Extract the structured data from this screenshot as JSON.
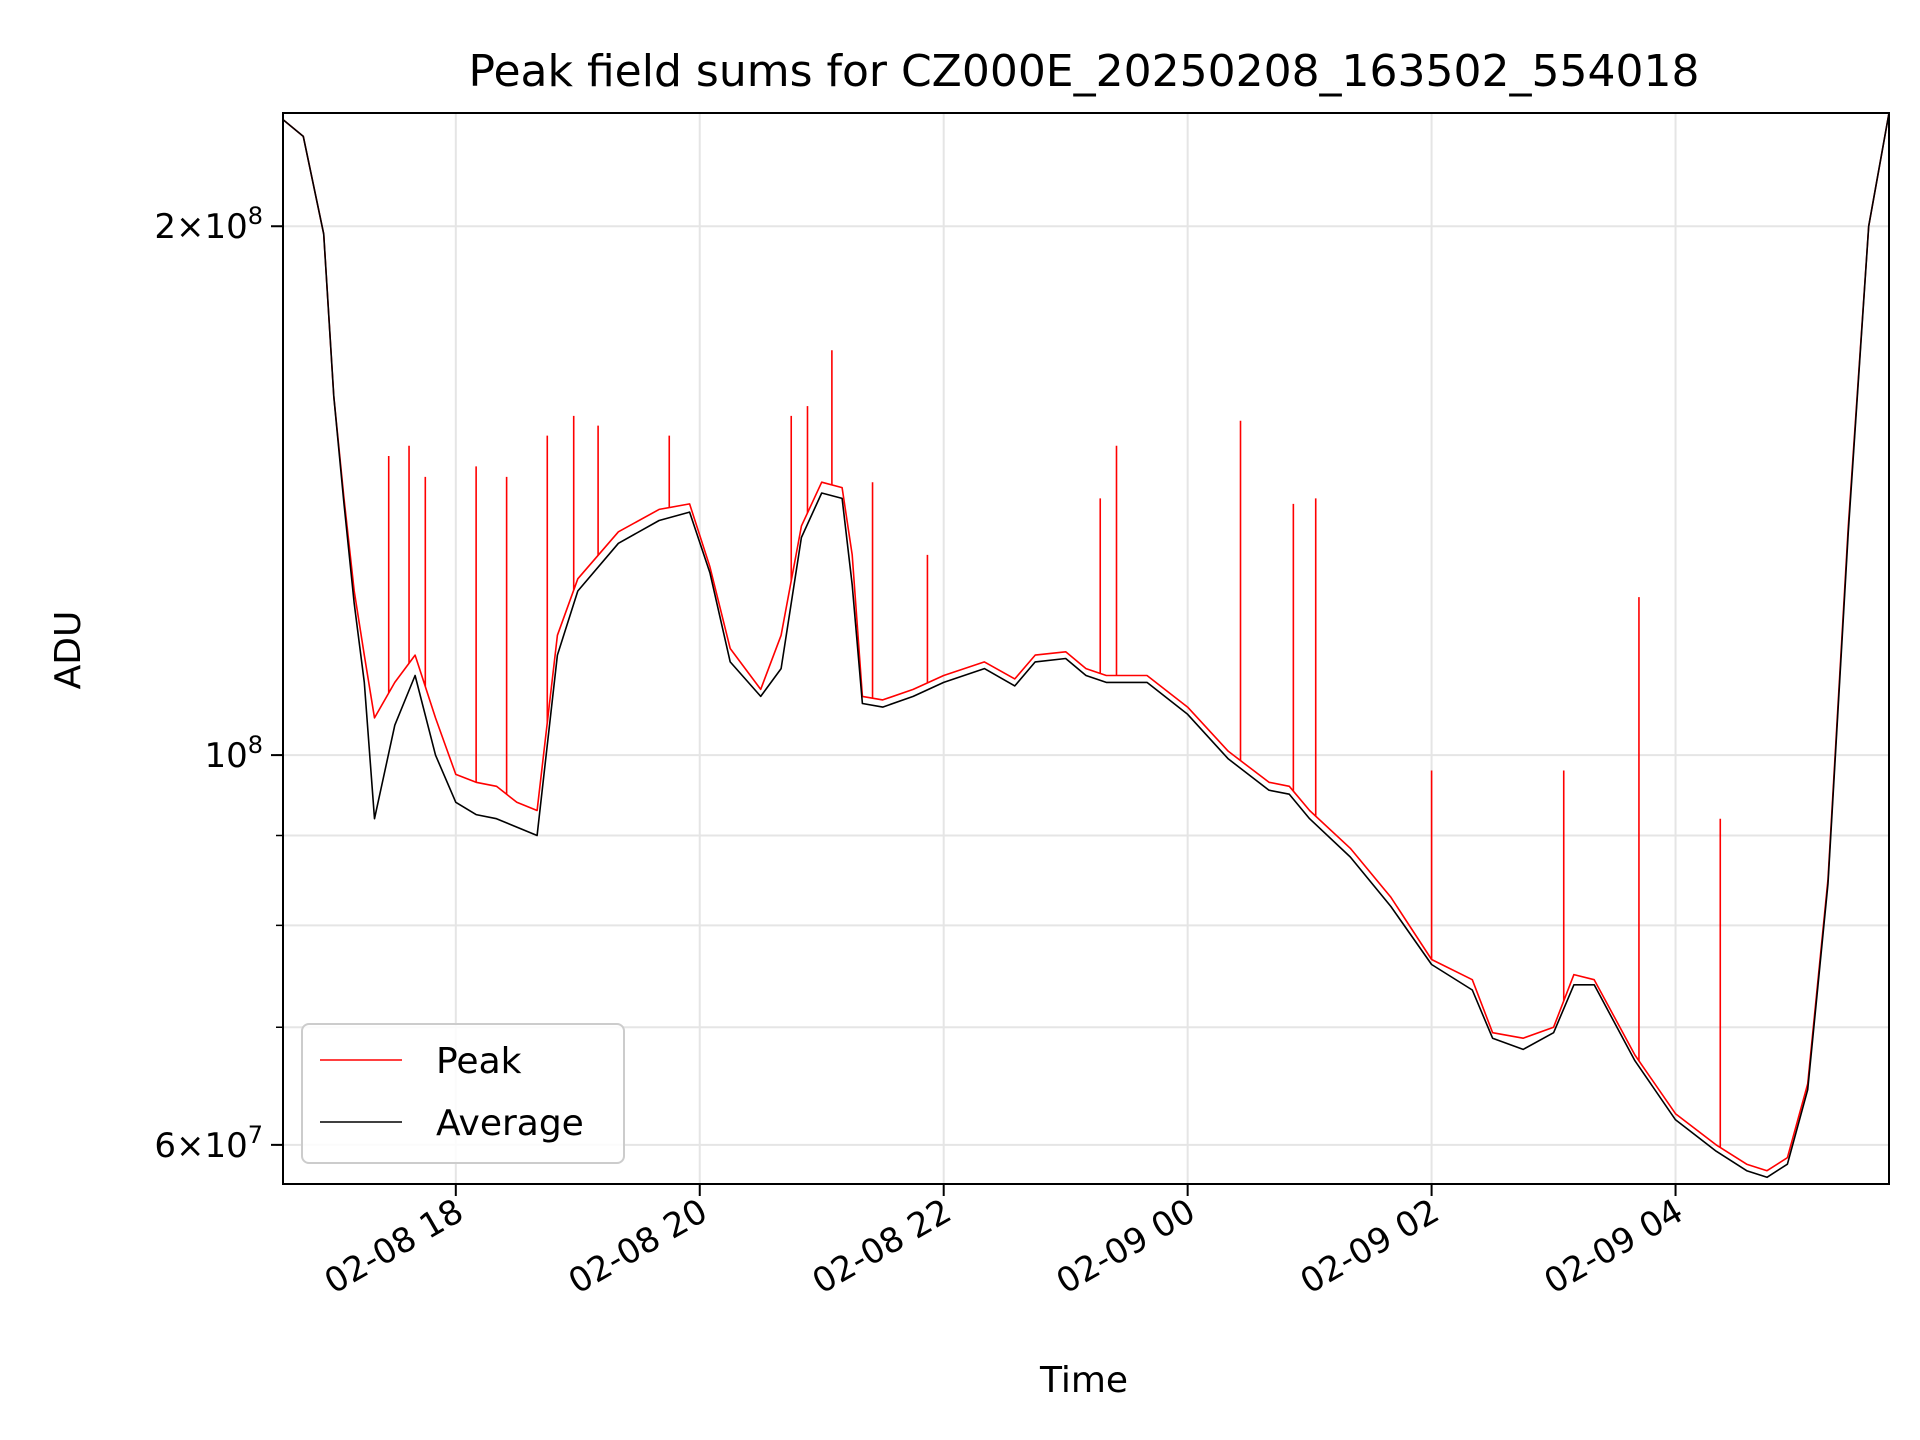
{
  "chart_data": {
    "type": "line",
    "title": "Peak field sums for CZ000E_20250208_163502_554018",
    "xlabel": "Time",
    "ylabel": "ADU",
    "y_scale": "log",
    "ylim": [
      57000000,
      232000000
    ],
    "xlim": [
      "2025-02-08 16:35",
      "2025-02-09 05:45"
    ],
    "grid": true,
    "legend_position": "lower-left",
    "x_ticks": [
      "02-08 18",
      "02-08 20",
      "02-08 22",
      "02-09 00",
      "02-09 02",
      "02-09 04"
    ],
    "x_tick_times": [
      "2025-02-08 18:00",
      "2025-02-08 20:00",
      "2025-02-08 22:00",
      "2025-02-09 00:00",
      "2025-02-09 02:00",
      "2025-02-09 04:00"
    ],
    "y_ticks_major": [
      "2×10^8",
      "10^8",
      "6×10^7"
    ],
    "y_tick_values": [
      200000000,
      100000000,
      60000000
    ],
    "series": [
      {
        "name": "Peak",
        "color": "#ff0000",
        "x": [
          "2025-02-08 16:35",
          "2025-02-08 16:45",
          "2025-02-08 16:55",
          "2025-02-08 17:00",
          "2025-02-08 17:05",
          "2025-02-08 17:10",
          "2025-02-08 17:15",
          "2025-02-08 17:20",
          "2025-02-08 17:30",
          "2025-02-08 17:40",
          "2025-02-08 17:50",
          "2025-02-08 18:00",
          "2025-02-08 18:10",
          "2025-02-08 18:20",
          "2025-02-08 18:30",
          "2025-02-08 18:40",
          "2025-02-08 18:50",
          "2025-02-08 19:00",
          "2025-02-08 19:20",
          "2025-02-08 19:40",
          "2025-02-08 19:55",
          "2025-02-08 20:05",
          "2025-02-08 20:15",
          "2025-02-08 20:30",
          "2025-02-08 20:40",
          "2025-02-08 20:50",
          "2025-02-08 21:00",
          "2025-02-08 21:10",
          "2025-02-08 21:15",
          "2025-02-08 21:20",
          "2025-02-08 21:30",
          "2025-02-08 21:45",
          "2025-02-08 22:00",
          "2025-02-08 22:20",
          "2025-02-08 22:35",
          "2025-02-08 22:45",
          "2025-02-08 23:00",
          "2025-02-08 23:10",
          "2025-02-08 23:20",
          "2025-02-08 23:40",
          "2025-02-09 00:00",
          "2025-02-09 00:20",
          "2025-02-09 00:40",
          "2025-02-09 00:50",
          "2025-02-09 01:00",
          "2025-02-09 01:20",
          "2025-02-09 01:40",
          "2025-02-09 02:00",
          "2025-02-09 02:20",
          "2025-02-09 02:30",
          "2025-02-09 02:45",
          "2025-02-09 03:00",
          "2025-02-09 03:10",
          "2025-02-09 03:20",
          "2025-02-09 03:40",
          "2025-02-09 04:00",
          "2025-02-09 04:20",
          "2025-02-09 04:35",
          "2025-02-09 04:45",
          "2025-02-09 04:55",
          "2025-02-09 05:05",
          "2025-02-09 05:15",
          "2025-02-09 05:25",
          "2025-02-09 05:35",
          "2025-02-09 05:45"
        ],
        "values": [
          230000000,
          225000000,
          198000000,
          160000000,
          140000000,
          124000000,
          114000000,
          105000000,
          110000000,
          114000000,
          105000000,
          97500000,
          96500000,
          96000000,
          94000000,
          93000000,
          117000000,
          126000000,
          134000000,
          138000000,
          139000000,
          128000000,
          115000000,
          109000000,
          117000000,
          135000000,
          143000000,
          142000000,
          130000000,
          108000000,
          107500000,
          109000000,
          111000000,
          113000000,
          110500000,
          114000000,
          114500000,
          112000000,
          111000000,
          111000000,
          106500000,
          100500000,
          96500000,
          96000000,
          93000000,
          88500000,
          83000000,
          76500000,
          74500000,
          69500000,
          69000000,
          70000000,
          75000000,
          74500000,
          67500000,
          62500000,
          60000000,
          58500000,
          58000000,
          59000000,
          65000000,
          85000000,
          135000000,
          200000000,
          232000000
        ]
      },
      {
        "name": "Average",
        "color": "#000000",
        "x": [
          "2025-02-08 16:35",
          "2025-02-08 16:45",
          "2025-02-08 16:55",
          "2025-02-08 17:00",
          "2025-02-08 17:05",
          "2025-02-08 17:10",
          "2025-02-08 17:15",
          "2025-02-08 17:20",
          "2025-02-08 17:30",
          "2025-02-08 17:40",
          "2025-02-08 17:50",
          "2025-02-08 18:00",
          "2025-02-08 18:10",
          "2025-02-08 18:20",
          "2025-02-08 18:30",
          "2025-02-08 18:40",
          "2025-02-08 18:50",
          "2025-02-08 19:00",
          "2025-02-08 19:20",
          "2025-02-08 19:40",
          "2025-02-08 19:55",
          "2025-02-08 20:05",
          "2025-02-08 20:15",
          "2025-02-08 20:30",
          "2025-02-08 20:40",
          "2025-02-08 20:50",
          "2025-02-08 21:00",
          "2025-02-08 21:10",
          "2025-02-08 21:15",
          "2025-02-08 21:20",
          "2025-02-08 21:30",
          "2025-02-08 21:45",
          "2025-02-08 22:00",
          "2025-02-08 22:20",
          "2025-02-08 22:35",
          "2025-02-08 22:45",
          "2025-02-08 23:00",
          "2025-02-08 23:10",
          "2025-02-08 23:20",
          "2025-02-08 23:40",
          "2025-02-09 00:00",
          "2025-02-09 00:20",
          "2025-02-09 00:40",
          "2025-02-09 00:50",
          "2025-02-09 01:00",
          "2025-02-09 01:20",
          "2025-02-09 01:40",
          "2025-02-09 02:00",
          "2025-02-09 02:20",
          "2025-02-09 02:30",
          "2025-02-09 02:45",
          "2025-02-09 03:00",
          "2025-02-09 03:10",
          "2025-02-09 03:20",
          "2025-02-09 03:40",
          "2025-02-09 04:00",
          "2025-02-09 04:20",
          "2025-02-09 04:35",
          "2025-02-09 04:45",
          "2025-02-09 04:55",
          "2025-02-09 05:05",
          "2025-02-09 05:15",
          "2025-02-09 05:25",
          "2025-02-09 05:35",
          "2025-02-09 05:45"
        ],
        "values": [
          230000000,
          225000000,
          198000000,
          160000000,
          139000000,
          122000000,
          110000000,
          92000000,
          104000000,
          111000000,
          100000000,
          94000000,
          92500000,
          92000000,
          91000000,
          90000000,
          114000000,
          124000000,
          132000000,
          136000000,
          137500000,
          127000000,
          113000000,
          108000000,
          112000000,
          133000000,
          141000000,
          140000000,
          125000000,
          107000000,
          106500000,
          108000000,
          110000000,
          112000000,
          109500000,
          113000000,
          113500000,
          111000000,
          110000000,
          110000000,
          105500000,
          99500000,
          95500000,
          95000000,
          92000000,
          87500000,
          82000000,
          76000000,
          73500000,
          69000000,
          68000000,
          69500000,
          74000000,
          74000000,
          67000000,
          62000000,
          59500000,
          58000000,
          57500000,
          58500000,
          64500000,
          84500000,
          134000000,
          200000000,
          232000000
        ]
      }
    ],
    "spikes": {
      "series": "Peak",
      "x": [
        "2025-02-08 17:27",
        "2025-02-08 17:37",
        "2025-02-08 17:45",
        "2025-02-08 18:10",
        "2025-02-08 18:25",
        "2025-02-08 18:45",
        "2025-02-08 18:58",
        "2025-02-08 19:10",
        "2025-02-08 19:45",
        "2025-02-08 20:45",
        "2025-02-08 20:53",
        "2025-02-08 21:05",
        "2025-02-08 21:25",
        "2025-02-08 21:52",
        "2025-02-08 23:17",
        "2025-02-08 23:25",
        "2025-02-09 00:26",
        "2025-02-09 00:52",
        "2025-02-09 01:03",
        "2025-02-09 02:00",
        "2025-02-09 03:05",
        "2025-02-09 03:42",
        "2025-02-09 04:22"
      ],
      "values": [
        148000000,
        150000000,
        144000000,
        146000000,
        144000000,
        152000000,
        156000000,
        154000000,
        152000000,
        156000000,
        158000000,
        170000000,
        143000000,
        130000000,
        140000000,
        150000000,
        155000000,
        139000000,
        140000000,
        98000000,
        98000000,
        123000000,
        92000000
      ]
    }
  },
  "legend": {
    "entries": [
      {
        "label": "Peak",
        "color": "#ff0000"
      },
      {
        "label": "Average",
        "color": "#000000"
      }
    ]
  }
}
